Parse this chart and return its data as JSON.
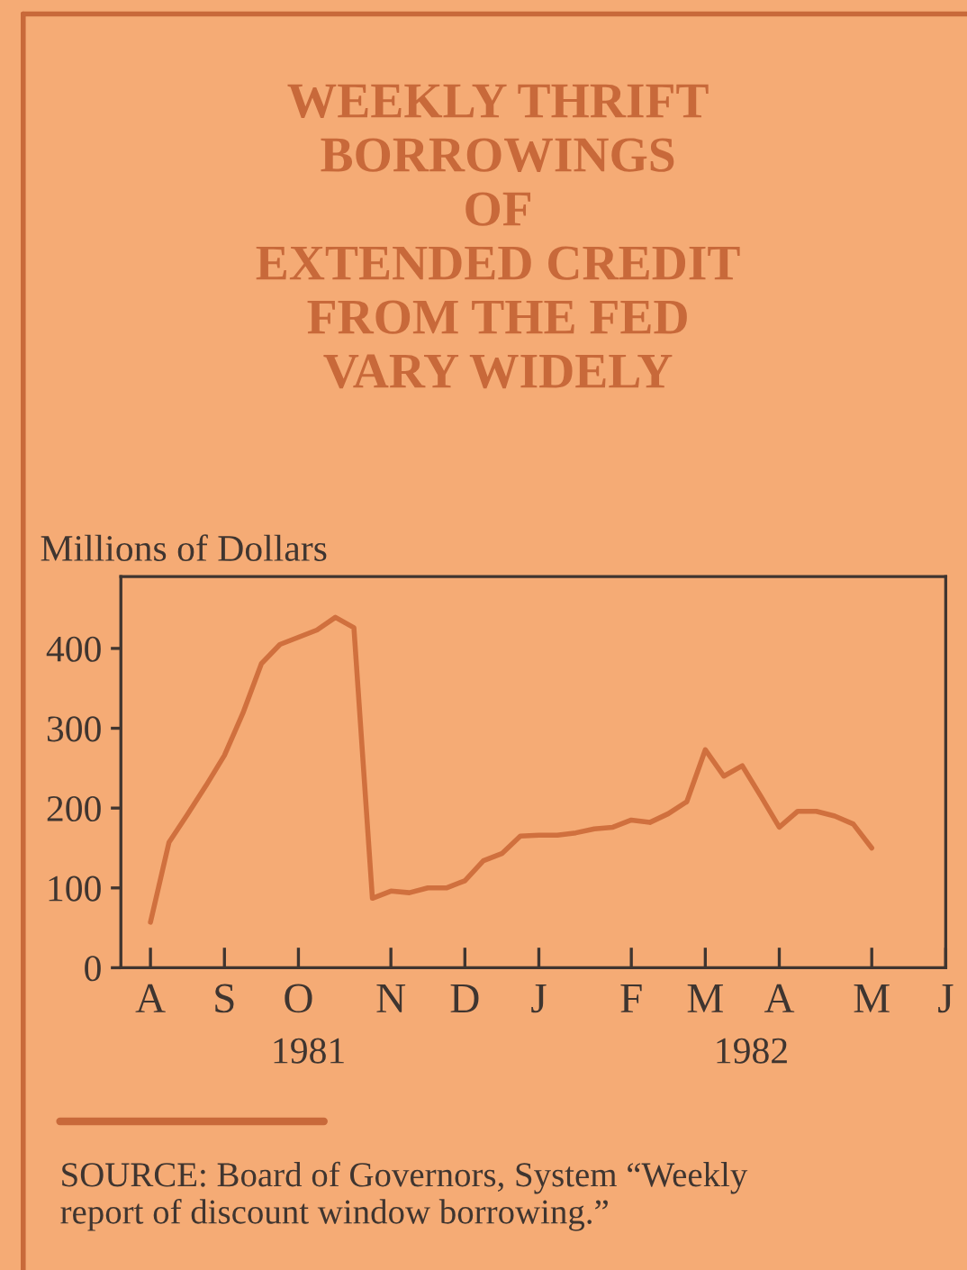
{
  "chart_data": {
    "type": "line",
    "title": "WEEKLY THRIFT\nBORROWINGS\nOF\nEXTENDED CREDIT\nFROM THE FED\nVARY WIDELY",
    "ylabel": "Millions of Dollars",
    "categories": [
      "A",
      null,
      null,
      null,
      "S",
      null,
      null,
      null,
      "O",
      null,
      null,
      null,
      null,
      "N",
      null,
      null,
      null,
      "D",
      null,
      null,
      null,
      "J",
      null,
      null,
      null,
      null,
      "F",
      null,
      null,
      null,
      "M",
      null,
      null,
      null,
      "A",
      null,
      null,
      null,
      null,
      "M",
      null,
      null,
      null,
      "J"
    ],
    "series": [
      {
        "color": "#d0703e",
        "values": [
          57,
          157,
          192,
          228,
          266,
          319,
          381,
          405,
          414,
          423,
          439,
          426,
          87,
          96,
          94,
          100,
          100,
          109,
          134,
          143,
          165,
          166,
          166,
          169,
          174,
          176,
          185,
          182,
          193,
          208,
          273,
          240,
          253,
          215,
          176,
          196,
          196,
          190,
          180,
          150,
          null,
          null,
          null,
          null
        ]
      }
    ],
    "ylim": [
      0,
      490
    ],
    "yticks": [
      0,
      100,
      200,
      300,
      400
    ],
    "grid": false,
    "legend": false,
    "line_style": "solid",
    "annotations": [
      "1981",
      "1982",
      "SOURCE: Board of Governors, System “Weekly\nreport of discount window borrowing.”"
    ]
  }
}
